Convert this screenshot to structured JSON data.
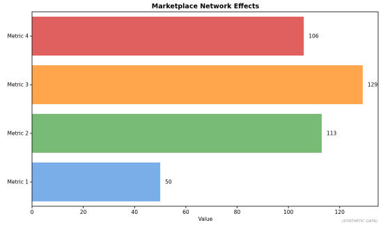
{
  "chart_data": {
    "type": "bar",
    "orientation": "horizontal",
    "title": "Marketplace Network Effects",
    "xlabel": "Value",
    "ylabel": "",
    "categories": [
      "Metric 1",
      "Metric 2",
      "Metric 3",
      "Metric 4"
    ],
    "values": [
      50,
      113,
      129,
      106
    ],
    "colors": [
      "#7aaee8",
      "#77bb77",
      "#ffa64d",
      "#e06060"
    ],
    "xlim": [
      0,
      135
    ],
    "xticks": [
      0,
      20,
      40,
      60,
      80,
      100,
      120
    ],
    "grid": false,
    "legend": "none"
  },
  "watermark": "(SYNTHETIC DATA)"
}
